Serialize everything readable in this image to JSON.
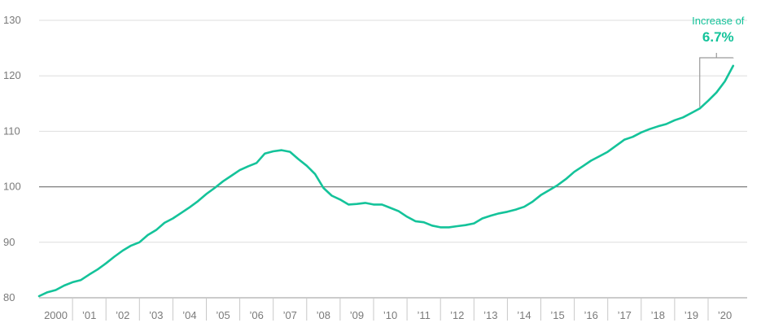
{
  "chart_data": {
    "type": "line",
    "title": "",
    "xlabel": "",
    "ylabel": "",
    "ylim": [
      80,
      130
    ],
    "yticks": [
      80,
      90,
      100,
      110,
      120,
      130
    ],
    "reference_line": 100,
    "grid": true,
    "x_labels": [
      "2000",
      "'01",
      "'02",
      "'03",
      "'04",
      "'05",
      "'06",
      "'07",
      "'08",
      "'09",
      "'10",
      "'11",
      "'12",
      "'13",
      "'14",
      "'15",
      "'16",
      "'17",
      "'18",
      "'19",
      "'20"
    ],
    "x_range": [
      2000.0,
      2020.5
    ],
    "series": [
      {
        "color": "#14c39a",
        "points": [
          [
            2000.0,
            80.3
          ],
          [
            2000.25,
            81.0
          ],
          [
            2000.5,
            81.4
          ],
          [
            2000.75,
            82.2
          ],
          [
            2001.0,
            82.8
          ],
          [
            2001.25,
            83.2
          ],
          [
            2001.5,
            84.2
          ],
          [
            2001.75,
            85.1
          ],
          [
            2002.0,
            86.2
          ],
          [
            2002.25,
            87.4
          ],
          [
            2002.5,
            88.5
          ],
          [
            2002.75,
            89.4
          ],
          [
            2003.0,
            90.0
          ],
          [
            2003.25,
            91.3
          ],
          [
            2003.5,
            92.2
          ],
          [
            2003.75,
            93.5
          ],
          [
            2004.0,
            94.3
          ],
          [
            2004.25,
            95.3
          ],
          [
            2004.5,
            96.3
          ],
          [
            2004.75,
            97.4
          ],
          [
            2005.0,
            98.7
          ],
          [
            2005.25,
            99.8
          ],
          [
            2005.5,
            101.0
          ],
          [
            2005.75,
            102.0
          ],
          [
            2006.0,
            103.0
          ],
          [
            2006.25,
            103.7
          ],
          [
            2006.5,
            104.3
          ],
          [
            2006.75,
            106.0
          ],
          [
            2007.0,
            106.4
          ],
          [
            2007.25,
            106.6
          ],
          [
            2007.5,
            106.3
          ],
          [
            2007.75,
            105.0
          ],
          [
            2008.0,
            103.8
          ],
          [
            2008.25,
            102.3
          ],
          [
            2008.5,
            99.8
          ],
          [
            2008.75,
            98.4
          ],
          [
            2009.0,
            97.7
          ],
          [
            2009.25,
            96.8
          ],
          [
            2009.5,
            96.9
          ],
          [
            2009.75,
            97.1
          ],
          [
            2010.0,
            96.8
          ],
          [
            2010.25,
            96.8
          ],
          [
            2010.5,
            96.2
          ],
          [
            2010.75,
            95.6
          ],
          [
            2011.0,
            94.6
          ],
          [
            2011.25,
            93.8
          ],
          [
            2011.5,
            93.6
          ],
          [
            2011.75,
            93.0
          ],
          [
            2012.0,
            92.7
          ],
          [
            2012.25,
            92.7
          ],
          [
            2012.5,
            92.9
          ],
          [
            2012.75,
            93.1
          ],
          [
            2013.0,
            93.4
          ],
          [
            2013.25,
            94.3
          ],
          [
            2013.5,
            94.8
          ],
          [
            2013.75,
            95.2
          ],
          [
            2014.0,
            95.5
          ],
          [
            2014.25,
            95.9
          ],
          [
            2014.5,
            96.4
          ],
          [
            2014.75,
            97.3
          ],
          [
            2015.0,
            98.5
          ],
          [
            2015.25,
            99.4
          ],
          [
            2015.5,
            100.3
          ],
          [
            2015.75,
            101.4
          ],
          [
            2016.0,
            102.7
          ],
          [
            2016.25,
            103.7
          ],
          [
            2016.5,
            104.7
          ],
          [
            2016.75,
            105.5
          ],
          [
            2017.0,
            106.3
          ],
          [
            2017.25,
            107.4
          ],
          [
            2017.5,
            108.5
          ],
          [
            2017.75,
            109.0
          ],
          [
            2018.0,
            109.8
          ],
          [
            2018.25,
            110.4
          ],
          [
            2018.5,
            110.9
          ],
          [
            2018.75,
            111.3
          ],
          [
            2019.0,
            112.0
          ],
          [
            2019.25,
            112.5
          ],
          [
            2019.5,
            113.3
          ],
          [
            2019.75,
            114.1
          ],
          [
            2020.0,
            115.5
          ],
          [
            2020.25,
            117.0
          ],
          [
            2020.5,
            119.0
          ],
          [
            2020.75,
            121.8
          ]
        ]
      }
    ],
    "annotation": {
      "line1": "Increase of",
      "line2": "6.7%",
      "color": "#14c39a",
      "from_x": 2019.75,
      "to_x": 2020.75
    }
  }
}
